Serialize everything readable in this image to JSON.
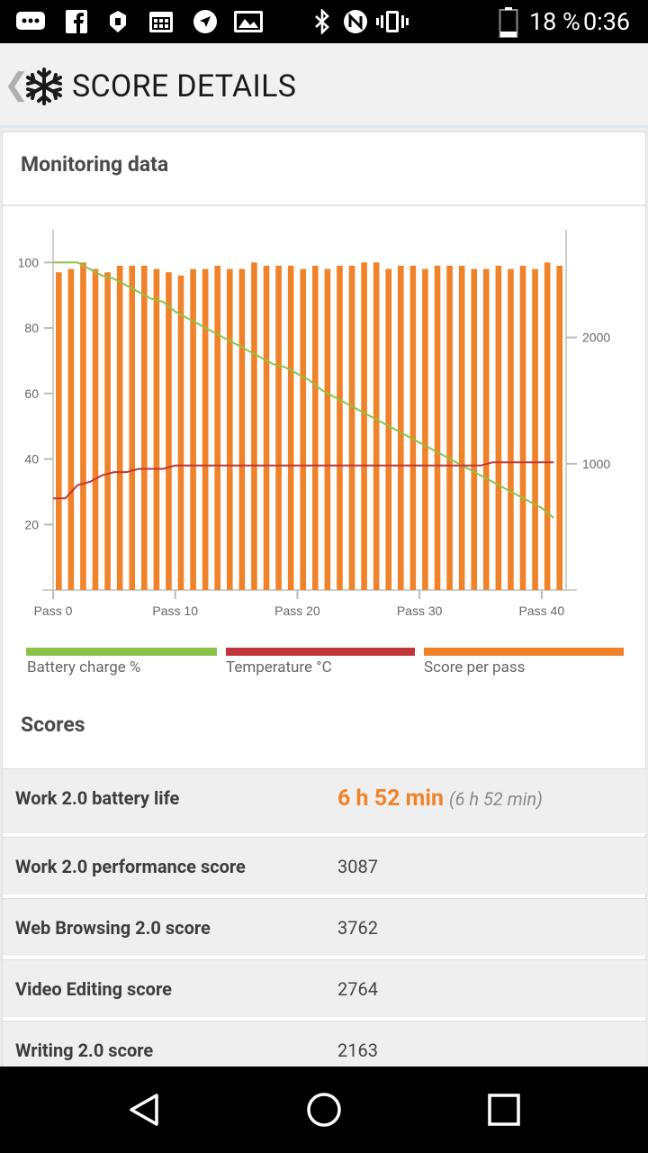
{
  "status_bar": {
    "battery": "18 %",
    "time": "0:36",
    "left_icons": [
      "chat-icon",
      "facebook-icon",
      "photos-icon",
      "calendar-icon",
      "navigation-icon",
      "gallery-icon"
    ],
    "right_icons": [
      "bluetooth-icon",
      "nfc-icon",
      "vibrate-icon",
      "battery-icon"
    ]
  },
  "app_bar": {
    "title": "SCORE DETAILS",
    "back_icon": "chevron-left-icon",
    "logo_icon": "snowflake-icon"
  },
  "monitoring": {
    "title": "Monitoring data"
  },
  "chart_data": {
    "type": "bar",
    "x_tick_labels": [
      "Pass 0",
      "Pass 10",
      "Pass 20",
      "Pass 30",
      "Pass 40"
    ],
    "x_ticks": [
      0,
      10,
      20,
      30,
      40
    ],
    "xlim": [
      0,
      42
    ],
    "left_axis": {
      "ticks": [
        20,
        40,
        60,
        80,
        100
      ],
      "ylim": [
        0,
        110
      ]
    },
    "right_axis": {
      "ticks": [
        1000,
        2000
      ],
      "ylim": [
        0,
        2853
      ]
    },
    "grid": false,
    "legend_position": "bottom",
    "series": [
      {
        "name": "Battery charge %",
        "type": "line",
        "axis": "left",
        "color": "#8bc34a",
        "x": [
          0,
          1,
          2,
          3,
          4,
          5,
          6,
          7,
          8,
          9,
          10,
          11,
          12,
          13,
          14,
          15,
          16,
          17,
          18,
          19,
          20,
          21,
          22,
          23,
          24,
          25,
          26,
          27,
          28,
          29,
          30,
          31,
          32,
          33,
          34,
          35,
          36,
          37,
          38,
          39,
          40,
          41
        ],
        "values": [
          100,
          100,
          100,
          98,
          96,
          95,
          93,
          91,
          89,
          88,
          85,
          83,
          81,
          79,
          77,
          75,
          73,
          71,
          69,
          68,
          66,
          64,
          61,
          59,
          57,
          55,
          53,
          51,
          49,
          47,
          45,
          43,
          41,
          39,
          37,
          35,
          33,
          31,
          29,
          27,
          25,
          22
        ]
      },
      {
        "name": "Temperature °C",
        "type": "line",
        "axis": "left",
        "color": "#c0353a",
        "x": [
          0,
          1,
          2,
          3,
          4,
          5,
          6,
          7,
          8,
          9,
          10,
          11,
          12,
          13,
          14,
          15,
          16,
          17,
          18,
          19,
          20,
          21,
          22,
          23,
          24,
          25,
          26,
          27,
          28,
          29,
          30,
          31,
          32,
          33,
          34,
          35,
          36,
          37,
          38,
          39,
          40,
          41
        ],
        "values": [
          28,
          28,
          32,
          33,
          35,
          36,
          36,
          37,
          37,
          37,
          38,
          38,
          38,
          38,
          38,
          38,
          38,
          38,
          38,
          38,
          38,
          38,
          38,
          38,
          38,
          38,
          38,
          38,
          38,
          38,
          38,
          38,
          38,
          38,
          38,
          38,
          39,
          39,
          39,
          39,
          39,
          39
        ]
      },
      {
        "name": "Score per pass",
        "type": "bar",
        "axis": "left",
        "color": "#f0822a",
        "x": [
          0,
          1,
          2,
          3,
          4,
          5,
          6,
          7,
          8,
          9,
          10,
          11,
          12,
          13,
          14,
          15,
          16,
          17,
          18,
          19,
          20,
          21,
          22,
          23,
          24,
          25,
          26,
          27,
          28,
          29,
          30,
          31,
          32,
          33,
          34,
          35,
          36,
          37,
          38,
          39,
          40,
          41
        ],
        "values": [
          97,
          98,
          100,
          98,
          97,
          99,
          99,
          99,
          98,
          97,
          96,
          98,
          98,
          99,
          98,
          98,
          100,
          99,
          99,
          99,
          98,
          99,
          98,
          99,
          99,
          100,
          100,
          98,
          99,
          99,
          98,
          99,
          99,
          99,
          98,
          98,
          99,
          98,
          99,
          98,
          100,
          99
        ]
      }
    ]
  },
  "legend": [
    {
      "label": "Battery charge %",
      "color": "#8bc34a"
    },
    {
      "label": "Temperature °C",
      "color": "#c0353a"
    },
    {
      "label": "Score per pass",
      "color": "#f0822a"
    }
  ],
  "scores": {
    "title": "Scores",
    "rows": [
      {
        "label": "Work 2.0 battery life",
        "value": "6 h 52 min",
        "sub": "(6 h 52 min)"
      },
      {
        "label": "Work 2.0 performance score",
        "value": "3087"
      },
      {
        "label": "Web Browsing 2.0 score",
        "value": "3762"
      },
      {
        "label": "Video Editing score",
        "value": "2764"
      },
      {
        "label": "Writing 2.0 score",
        "value": "2163"
      }
    ]
  },
  "nav_bar": {
    "icons": [
      "back-triangle-icon",
      "home-circle-icon",
      "recents-square-icon"
    ]
  }
}
